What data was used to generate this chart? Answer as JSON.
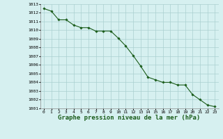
{
  "x": [
    0,
    1,
    2,
    3,
    4,
    5,
    6,
    7,
    8,
    9,
    10,
    11,
    12,
    13,
    14,
    15,
    16,
    17,
    18,
    19,
    20,
    21,
    22,
    23
  ],
  "y": [
    1012.5,
    1012.2,
    1011.2,
    1011.2,
    1010.6,
    1010.3,
    1010.3,
    1009.9,
    1009.9,
    1009.9,
    1009.1,
    1008.2,
    1007.1,
    1005.9,
    1004.6,
    1004.3,
    1004.0,
    1004.0,
    1003.7,
    1003.7,
    1002.6,
    1002.0,
    1001.4,
    1001.2
  ],
  "line_color": "#1a5c1a",
  "marker": "D",
  "marker_size": 1.8,
  "bg_color": "#d6f0f0",
  "grid_color": "#aacfcf",
  "xlabel": "Graphe pression niveau de la mer (hPa)",
  "xlim_min": -0.5,
  "xlim_max": 23.5,
  "ylim": [
    1001,
    1013
  ],
  "yticks": [
    1001,
    1002,
    1003,
    1004,
    1005,
    1006,
    1007,
    1008,
    1009,
    1010,
    1011,
    1012,
    1013
  ],
  "xticks": [
    0,
    1,
    2,
    3,
    4,
    5,
    6,
    7,
    8,
    9,
    10,
    11,
    12,
    13,
    14,
    15,
    16,
    17,
    18,
    19,
    20,
    21,
    22,
    23
  ],
  "tick_fontsize": 4.5,
  "label_fontsize": 6.5,
  "line_width": 0.8
}
